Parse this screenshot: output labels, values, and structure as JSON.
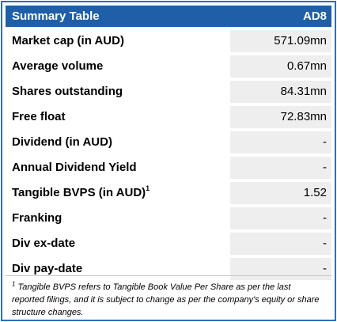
{
  "table": {
    "title": "Summary Table",
    "ticker": "AD8",
    "rows": [
      {
        "label": "Market cap (in AUD)",
        "value": "571.09mn"
      },
      {
        "label": "Average volume",
        "value": "0.67mn"
      },
      {
        "label": "Shares outstanding",
        "value": "84.31mn"
      },
      {
        "label": "Free float",
        "value": "72.83mn"
      },
      {
        "label": "Dividend (in AUD)",
        "value": "-"
      },
      {
        "label": "Annual Dividend Yield",
        "value": "-"
      },
      {
        "label": "Tangible BVPS (in AUD)",
        "label_sup": "1",
        "value": "1.52"
      },
      {
        "label": "Franking",
        "value": "-"
      },
      {
        "label": "Div ex-date",
        "value": "-"
      },
      {
        "label": "Div pay-date",
        "value": "-"
      }
    ]
  },
  "footnote": {
    "marker": "1",
    "text": "Tangible BVPS refers to Tangible Book Value Per Share as per the last reported filings, and it is subject to change as per the company's equity or share structure changes."
  },
  "colors": {
    "header_bg": "#1f5fa8",
    "border": "#2f6eba",
    "value_cell_bg": "#eeeeee"
  }
}
